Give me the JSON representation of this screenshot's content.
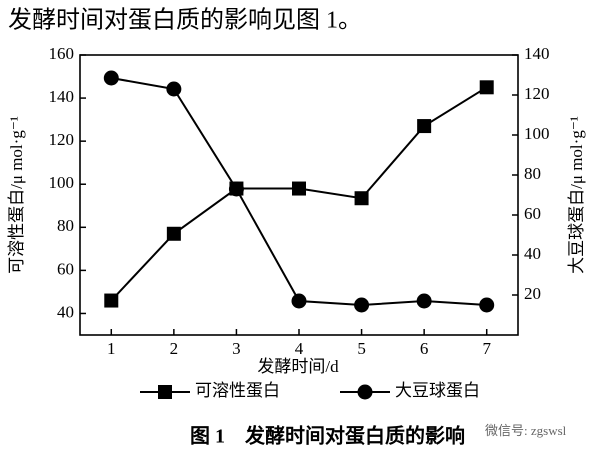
{
  "intro": "发酵时间对蛋白质的影响见图 1。",
  "chart_data": {
    "type": "line",
    "x_label": "发酵时间/d",
    "y_label": "可溶性蛋白/μ mol·g⁻¹",
    "y2_label": "大豆球蛋白/μ mol·g⁻¹",
    "x": [
      1,
      2,
      3,
      4,
      5,
      6,
      7
    ],
    "xlim": [
      0.5,
      7.5
    ],
    "xticks": [
      1,
      2,
      3,
      4,
      5,
      6,
      7
    ],
    "ylim": [
      30,
      160
    ],
    "yticks": [
      40,
      60,
      80,
      100,
      120,
      140,
      160
    ],
    "y2lim": [
      0,
      140
    ],
    "y2ticks": [
      20,
      40,
      60,
      80,
      100,
      120,
      140
    ],
    "series": [
      {
        "name": "可溶性蛋白",
        "color": "#000000",
        "marker": "square",
        "values": [
          46,
          77,
          98,
          98,
          93.5,
          127,
          145
        ]
      },
      {
        "name": "大豆球蛋白",
        "color": "#000000",
        "marker": "circle",
        "axis": "y2",
        "values": [
          128.5,
          123,
          73,
          17,
          15,
          17,
          15
        ]
      }
    ]
  },
  "caption": "图 1　发酵时间对蛋白质的影响",
  "watermark": "微信号: zgswsl"
}
